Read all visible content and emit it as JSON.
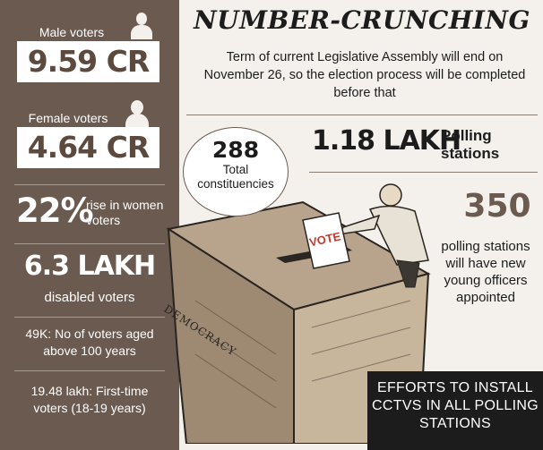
{
  "title": "NUMBER-CRUNCHING",
  "subtitle": "Term of current Legislative Assembly will end on November 26, so the election process will be completed before that",
  "left_panel": {
    "male_label": "Male voters",
    "male_value": "9.59 CR",
    "female_label": "Female voters",
    "female_value": "4.64 CR",
    "women_rise_pct": "22%",
    "women_rise_text": "rise in women voters",
    "disabled_value": "6.3 LAKH",
    "disabled_label": "disabled voters",
    "centenarians_text": "49K: No of voters aged above 100 years",
    "first_time_text": "19.48 lakh: First-time voters (18-19 years)"
  },
  "constituencies": {
    "value": "288",
    "label": "Total constituencies"
  },
  "polling": {
    "value": "1.18 LAKH",
    "label": "Polling stations"
  },
  "young_officers": {
    "value": "350",
    "label": "polling stations will have new young officers appointed"
  },
  "illustration": {
    "vote_text": "VOTE",
    "box_text": "DEMOCRACY"
  },
  "efforts": "EFFORTS TO INSTALL CCTVS IN ALL POLLING STATIONS",
  "colors": {
    "panel_brown": "#6b5a4f",
    "background": "#f4f1ec",
    "dark": "#1c1c1c"
  }
}
